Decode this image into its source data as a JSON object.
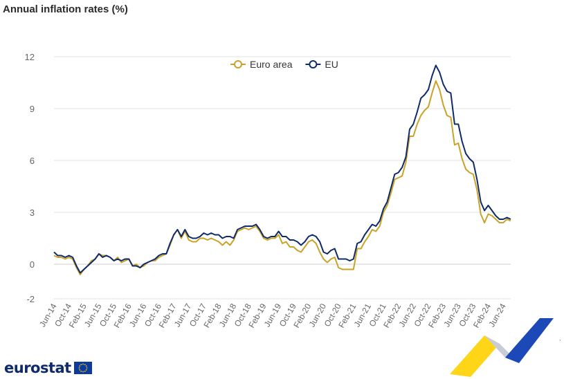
{
  "page": {
    "title": "Annual inflation rates (%)"
  },
  "brand": {
    "name": "eurostat",
    "tick_mark": ","
  },
  "colors": {
    "euro_area": "#c9a227",
    "eu": "#0e2a6b",
    "grid": "#e3e3e3",
    "axis_text": "#666666"
  },
  "icons": {
    "logo": "eu-flag-icon",
    "decoration": "ribbon-wedge-icon"
  },
  "chart_data": {
    "type": "line",
    "title": "Annual inflation rates (%)",
    "xlabel": "",
    "ylabel": "",
    "ylim": [
      -2,
      12
    ],
    "yticks": [
      -2,
      0,
      3,
      6,
      9,
      12
    ],
    "grid": true,
    "legend": {
      "position": "top-center"
    },
    "x_start": "Jun-14",
    "x_tick_labels": [
      "Jun-14",
      "Oct-14",
      "Feb-15",
      "Jun-15",
      "Oct-15",
      "Feb-16",
      "Jun-16",
      "Oct-16",
      "Feb-17",
      "Jun-17",
      "Oct-17",
      "Feb-18",
      "Jun-18",
      "Oct-18",
      "Feb-19",
      "Jun-19",
      "Oct-19",
      "Feb-20",
      "Jun-20",
      "Oct-20",
      "Feb-21",
      "Jun-21",
      "Oct-21",
      "Feb-22",
      "Jun-22",
      "Oct-22",
      "Feb-23",
      "Jun-23",
      "Oct-23",
      "Feb-24",
      "Jun-24"
    ],
    "series": [
      {
        "name": "Euro area",
        "color": "#c9a227",
        "values": [
          0.5,
          0.4,
          0.4,
          0.3,
          0.4,
          0.3,
          -0.2,
          -0.6,
          -0.3,
          -0.1,
          0.2,
          0.3,
          0.6,
          0.5,
          0.5,
          0.4,
          0.2,
          0.4,
          0.1,
          0.2,
          0.3,
          -0.1,
          0.0,
          -0.2,
          -0.1,
          0.1,
          0.2,
          0.2,
          0.4,
          0.5,
          0.6,
          1.1,
          1.7,
          2.0,
          1.5,
          1.9,
          1.4,
          1.3,
          1.3,
          1.5,
          1.5,
          1.4,
          1.5,
          1.4,
          1.3,
          1.1,
          1.3,
          1.1,
          1.4,
          1.9,
          2.0,
          2.1,
          2.0,
          2.1,
          2.2,
          1.9,
          1.5,
          1.4,
          1.5,
          1.5,
          1.7,
          1.2,
          1.3,
          1.0,
          1.0,
          0.8,
          0.7,
          1.0,
          1.3,
          1.4,
          1.2,
          0.7,
          0.3,
          0.1,
          0.3,
          0.4,
          -0.2,
          -0.3,
          -0.3,
          -0.3,
          -0.3,
          0.9,
          0.9,
          1.3,
          1.6,
          2.0,
          1.9,
          2.2,
          3.0,
          3.4,
          4.1,
          4.9,
          5.0,
          5.1,
          5.9,
          7.4,
          7.4,
          8.1,
          8.6,
          8.9,
          9.1,
          9.9,
          10.6,
          10.1,
          9.2,
          8.6,
          8.5,
          6.9,
          7.0,
          6.1,
          5.5,
          5.3,
          5.2,
          4.3,
          2.9,
          2.4,
          2.9,
          2.8,
          2.6,
          2.4,
          2.4,
          2.6,
          2.5
        ]
      },
      {
        "name": "EU",
        "color": "#0e2a6b",
        "values": [
          0.7,
          0.5,
          0.5,
          0.4,
          0.5,
          0.4,
          -0.1,
          -0.5,
          -0.3,
          -0.1,
          0.1,
          0.3,
          0.6,
          0.4,
          0.5,
          0.4,
          0.2,
          0.3,
          0.2,
          0.3,
          0.3,
          -0.1,
          -0.1,
          -0.2,
          0.0,
          0.1,
          0.2,
          0.3,
          0.5,
          0.6,
          0.6,
          1.2,
          1.7,
          2.0,
          1.6,
          2.0,
          1.6,
          1.5,
          1.5,
          1.6,
          1.8,
          1.7,
          1.8,
          1.7,
          1.7,
          1.5,
          1.6,
          1.6,
          1.5,
          2.0,
          2.1,
          2.2,
          2.2,
          2.2,
          2.3,
          2.0,
          1.6,
          1.5,
          1.6,
          1.6,
          1.9,
          1.6,
          1.6,
          1.4,
          1.4,
          1.3,
          1.1,
          1.3,
          1.6,
          1.7,
          1.6,
          1.3,
          0.7,
          0.6,
          0.8,
          0.9,
          0.3,
          0.3,
          0.3,
          0.2,
          0.3,
          1.2,
          1.3,
          1.7,
          2.0,
          2.3,
          2.2,
          2.5,
          3.2,
          3.6,
          4.4,
          5.2,
          5.3,
          5.6,
          6.2,
          7.8,
          8.1,
          8.8,
          9.6,
          9.8,
          10.1,
          10.9,
          11.5,
          11.1,
          10.4,
          10.0,
          9.9,
          8.1,
          8.1,
          7.1,
          6.4,
          6.1,
          5.9,
          4.9,
          3.6,
          3.1,
          3.4,
          3.1,
          2.8,
          2.6,
          2.6,
          2.7,
          2.6
        ]
      }
    ]
  }
}
